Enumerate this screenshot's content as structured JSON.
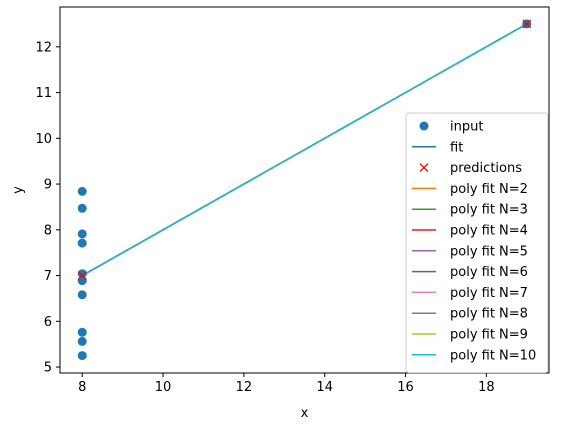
{
  "chart_data": {
    "type": "scatter",
    "xlabel": "x",
    "ylabel": "y",
    "xlim": [
      7.45,
      19.55
    ],
    "ylim": [
      4.87,
      12.87
    ],
    "xticks": [
      8,
      10,
      12,
      14,
      16,
      18
    ],
    "yticks": [
      5,
      6,
      7,
      8,
      9,
      10,
      11,
      12
    ],
    "grid": false,
    "legend_position": "lower right",
    "series": [
      {
        "name": "input",
        "kind": "points",
        "color": "#1f77b4",
        "x": [
          8,
          8,
          8,
          8,
          8,
          8,
          8,
          8,
          8,
          8,
          19
        ],
        "y": [
          8.84,
          8.47,
          7.91,
          7.71,
          7.04,
          6.89,
          6.58,
          5.76,
          5.56,
          5.25,
          12.5
        ]
      },
      {
        "name": "fit",
        "kind": "line",
        "color": "#1f77b4",
        "x": [
          8,
          19
        ],
        "y": [
          7.0,
          12.5
        ]
      },
      {
        "name": "predictions",
        "kind": "marker-x",
        "color": "#ff0000",
        "x": [
          8,
          19
        ],
        "y": [
          7.0,
          12.5
        ]
      },
      {
        "name": "poly fit N=2",
        "kind": "line",
        "color": "#ff7f0e",
        "x": [
          8,
          19
        ],
        "y": [
          7.0,
          12.5
        ]
      },
      {
        "name": "poly fit N=3",
        "kind": "line",
        "color": "#2ca02c",
        "x": [
          8,
          19
        ],
        "y": [
          7.0,
          12.5
        ]
      },
      {
        "name": "poly fit N=4",
        "kind": "line",
        "color": "#d62728",
        "x": [
          8,
          19
        ],
        "y": [
          7.0,
          12.5
        ]
      },
      {
        "name": "poly fit N=5",
        "kind": "line",
        "color": "#9467bd",
        "x": [
          8,
          19
        ],
        "y": [
          7.0,
          12.5
        ]
      },
      {
        "name": "poly fit N=6",
        "kind": "line",
        "color": "#8c564b",
        "x": [
          8,
          19
        ],
        "y": [
          7.0,
          12.5
        ]
      },
      {
        "name": "poly fit N=7",
        "kind": "line",
        "color": "#e377c2",
        "x": [
          8,
          19
        ],
        "y": [
          7.0,
          12.5
        ]
      },
      {
        "name": "poly fit N=8",
        "kind": "line",
        "color": "#7f7f7f",
        "x": [
          8,
          19
        ],
        "y": [
          7.0,
          12.5
        ]
      },
      {
        "name": "poly fit N=9",
        "kind": "line",
        "color": "#bcbd22",
        "x": [
          8,
          19
        ],
        "y": [
          7.0,
          12.5
        ]
      },
      {
        "name": "poly fit N=10",
        "kind": "line",
        "color": "#17becf",
        "x": [
          8,
          19
        ],
        "y": [
          7.0,
          12.5
        ]
      }
    ]
  }
}
